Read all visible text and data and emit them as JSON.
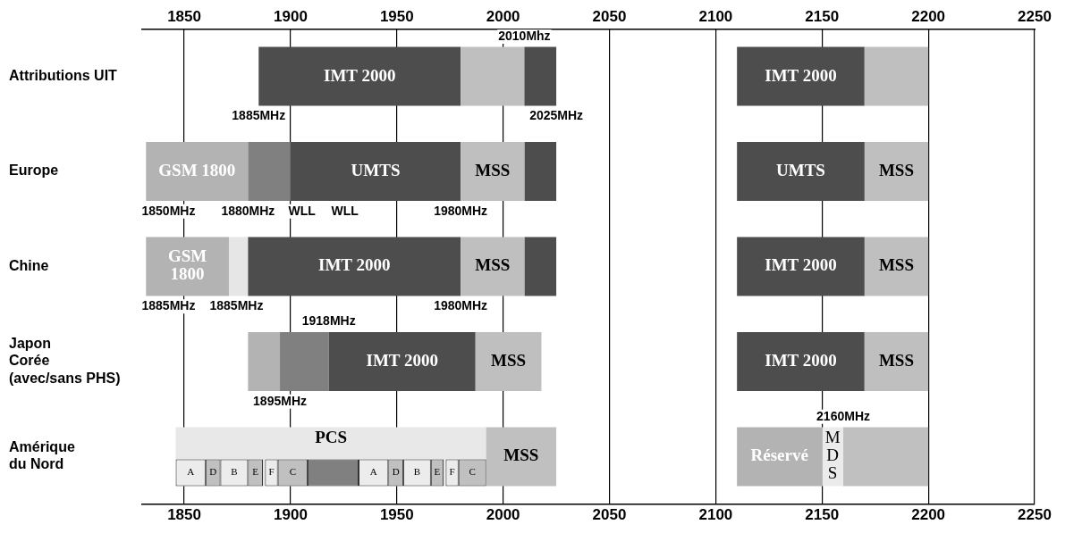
{
  "chart_data": {
    "type": "bar",
    "orientation": "horizontal",
    "categories": [
      "Attributions UIT",
      "Europe",
      "Chine",
      "Japon\nCorée\n(avec/sans PHS)",
      "Amérique\ndu Nord"
    ],
    "xlim": [
      1830,
      2250
    ],
    "xticks": [
      1850,
      1900,
      1950,
      2000,
      2050,
      2100,
      2150,
      2200,
      2250
    ],
    "x2lim": [
      1830,
      2250
    ],
    "x2ticks": [
      1850,
      1900,
      1950,
      2000,
      2050,
      2100,
      2150,
      2200,
      2250
    ],
    "grid": "x",
    "legend": false,
    "series": [
      {
        "base": [
          1885,
          1832,
          1832,
          1880,
          1846
        ],
        "values": [
          95,
          48,
          39,
          15,
          146
        ],
        "colors": [
          "#4d4d4d",
          "#b3b3b3",
          "#b3b3b3",
          "#b3b3b3",
          "#e8e8e8"
        ],
        "value_labels": [
          "IMT 2000",
          "GSM 1800",
          "GSM\n1800",
          null,
          "PCS"
        ]
      },
      {
        "base": [
          1980,
          1880,
          1871,
          1895,
          1992
        ],
        "values": [
          30,
          20,
          9,
          23,
          33
        ],
        "colors": [
          "#bfbfbf",
          "#808080",
          "#e6e6e6",
          "#808080",
          "#c0c0c0"
        ],
        "value_labels": [
          null,
          null,
          null,
          null,
          "MSS"
        ]
      },
      {
        "base": [
          2010,
          1900,
          1880,
          1918,
          2110
        ],
        "values": [
          15,
          80,
          100,
          69,
          40
        ],
        "colors": [
          "#4d4d4d",
          "#4d4d4d",
          "#4d4d4d",
          "#4d4d4d",
          "#b3b3b3"
        ],
        "value_labels": [
          null,
          "UMTS",
          "IMT 2000",
          "IMT 2000",
          "Réservé"
        ]
      },
      {
        "base": [
          2110,
          2170,
          2170,
          1987,
          2150
        ],
        "values": [
          60,
          30,
          30,
          31,
          10
        ],
        "colors": [
          "#4d4d4d",
          "#bfbfbf",
          "#bfbfbf",
          "#bfbfbf",
          "#ebebeb"
        ],
        "value_labels": [
          "IMT 2000",
          "MSS",
          "MSS",
          "MSS",
          "M\nD\nS"
        ]
      },
      {
        "base": [
          2170,
          2010,
          2010,
          2110,
          2160
        ],
        "values": [
          30,
          15,
          15,
          60,
          40
        ],
        "colors": [
          "#bfbfbf",
          "#4d4d4d",
          "#4d4d4d",
          "#4d4d4d",
          "#c0c0c0"
        ],
        "value_labels": [
          null,
          null,
          null,
          "IMT 2000",
          null
        ]
      },
      {
        "base": [
          null,
          2110,
          2110,
          2170,
          null
        ],
        "values": [
          null,
          60,
          60,
          30,
          null
        ],
        "colors": [
          null,
          "#4d4d4d",
          "#4d4d4d",
          "#bfbfbf",
          null
        ],
        "value_labels": [
          null,
          "UMTS",
          "IMT 2000",
          "MSS",
          null
        ]
      },
      {
        "base": [
          null,
          1980,
          1980,
          null,
          null
        ],
        "values": [
          null,
          30,
          30,
          null,
          null
        ],
        "colors": [
          null,
          "#bfbfbf",
          "#bfbfbf",
          null,
          null
        ],
        "value_labels": [
          null,
          "MSS",
          "MSS",
          null,
          null
        ]
      },
      {
        "base": [
          null,
          null,
          null,
          null,
          1908
        ],
        "values": [
          null,
          null,
          null,
          null,
          24
        ],
        "colors": [
          null,
          null,
          null,
          null,
          "#808080"
        ]
      },
      {
        "base": [
          null,
          null,
          null,
          null,
          1846
        ],
        "values": [
          null,
          null,
          null,
          null,
          14
        ],
        "colors": [
          null,
          null,
          null,
          null,
          "#ececec"
        ],
        "value_labels": [
          null,
          null,
          null,
          null,
          "A"
        ]
      },
      {
        "base": [
          null,
          null,
          null,
          null,
          1860
        ],
        "values": [
          null,
          null,
          null,
          null,
          7
        ],
        "colors": [
          null,
          null,
          null,
          null,
          "#c0c0c0"
        ],
        "value_labels": [
          null,
          null,
          null,
          null,
          "D"
        ]
      },
      {
        "base": [
          null,
          null,
          null,
          null,
          1867
        ],
        "values": [
          null,
          null,
          null,
          null,
          13
        ],
        "colors": [
          null,
          null,
          null,
          null,
          "#ececec"
        ],
        "value_labels": [
          null,
          null,
          null,
          null,
          "B"
        ]
      },
      {
        "base": [
          null,
          null,
          null,
          null,
          1880
        ],
        "values": [
          null,
          null,
          null,
          null,
          7
        ],
        "colors": [
          null,
          null,
          null,
          null,
          "#c0c0c0"
        ],
        "value_labels": [
          null,
          null,
          null,
          null,
          "E"
        ]
      },
      {
        "base": [
          null,
          null,
          null,
          null,
          1888
        ],
        "values": [
          null,
          null,
          null,
          null,
          6
        ],
        "colors": [
          null,
          null,
          null,
          null,
          "#ececec"
        ],
        "value_labels": [
          null,
          null,
          null,
          null,
          "F"
        ]
      },
      {
        "base": [
          null,
          null,
          null,
          null,
          1894
        ],
        "values": [
          null,
          null,
          null,
          null,
          14
        ],
        "colors": [
          null,
          null,
          null,
          null,
          "#c0c0c0"
        ],
        "value_labels": [
          null,
          null,
          null,
          null,
          "C"
        ]
      },
      {
        "base": [
          null,
          null,
          null,
          null,
          1932
        ],
        "values": [
          null,
          null,
          null,
          null,
          14
        ],
        "colors": [
          null,
          null,
          null,
          null,
          "#ececec"
        ],
        "value_labels": [
          null,
          null,
          null,
          null,
          "A"
        ]
      },
      {
        "base": [
          null,
          null,
          null,
          null,
          1946
        ],
        "values": [
          null,
          null,
          null,
          null,
          7
        ],
        "colors": [
          null,
          null,
          null,
          null,
          "#c0c0c0"
        ],
        "value_labels": [
          null,
          null,
          null,
          null,
          "D"
        ]
      },
      {
        "base": [
          null,
          null,
          null,
          null,
          1953
        ],
        "values": [
          null,
          null,
          null,
          null,
          13
        ],
        "colors": [
          null,
          null,
          null,
          null,
          "#ececec"
        ],
        "value_labels": [
          null,
          null,
          null,
          null,
          "B"
        ]
      },
      {
        "base": [
          null,
          null,
          null,
          null,
          1966
        ],
        "values": [
          null,
          null,
          null,
          null,
          6
        ],
        "colors": [
          null,
          null,
          null,
          null,
          "#c0c0c0"
        ],
        "value_labels": [
          null,
          null,
          null,
          null,
          "E"
        ]
      },
      {
        "base": [
          null,
          null,
          null,
          null,
          1973
        ],
        "values": [
          null,
          null,
          null,
          null,
          6
        ],
        "colors": [
          null,
          null,
          null,
          null,
          "#ececec"
        ],
        "value_labels": [
          null,
          null,
          null,
          null,
          "F"
        ]
      },
      {
        "base": [
          null,
          null,
          null,
          null,
          1979
        ],
        "values": [
          null,
          null,
          null,
          null,
          13
        ],
        "colors": [
          null,
          null,
          null,
          null,
          "#c0c0c0"
        ],
        "value_labels": [
          null,
          null,
          null,
          null,
          "C"
        ]
      }
    ],
    "annotations": [
      {
        "text": "1885MHz",
        "x": 1885,
        "y": "Attributions UIT"
      },
      {
        "text": "2025MHz",
        "x": 2025,
        "y": "Attributions UIT"
      },
      {
        "text": "2010Mhz",
        "x": 2010,
        "y": "Attributions UIT"
      },
      {
        "text": "1880MHz",
        "x": 1880,
        "y": "Europe"
      },
      {
        "text": "1980MHz",
        "x": 1980,
        "y": "Europe"
      },
      "1850MHz",
      "WLL",
      "WLL",
      {
        "text": "1980MHz",
        "x": 1980,
        "y": "Chine"
      },
      "1885MHz",
      "1885MHz",
      {
        "text": "1895MHz",
        "x": 1895,
        "y": "Japon\nCorée\n(avec/sans PHS)"
      },
      {
        "text": "1918MHz",
        "x": 1918,
        "y": "Japon\nCorée\n(avec/sans PHS)"
      },
      {
        "text": "2160MHz",
        "x": 2160,
        "y": "Amérique\ndu Nord"
      }
    ]
  }
}
